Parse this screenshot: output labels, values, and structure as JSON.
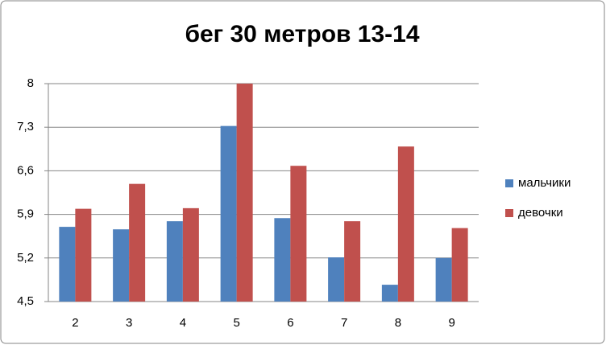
{
  "chart_data": {
    "type": "bar",
    "title": "бег 30 метров 13-14",
    "categories": [
      "2",
      "3",
      "4",
      "5",
      "6",
      "7",
      "8",
      "9"
    ],
    "series": [
      {
        "name": "мальчики",
        "color": "#4f81bd",
        "values": [
          5.7,
          5.66,
          5.79,
          7.32,
          5.84,
          5.21,
          4.77,
          5.2
        ]
      },
      {
        "name": "девочки",
        "color": "#c0504d",
        "values": [
          5.99,
          6.39,
          6.0,
          8.0,
          6.68,
          5.79,
          6.99,
          5.68
        ]
      }
    ],
    "ylim": [
      4.5,
      8
    ],
    "yticks": [
      {
        "value": 4.5,
        "label": "4,5"
      },
      {
        "value": 5.2,
        "label": "5,2"
      },
      {
        "value": 5.9,
        "label": "5,9"
      },
      {
        "value": 6.6,
        "label": "6,6"
      },
      {
        "value": 7.3,
        "label": "7,3"
      },
      8
    ],
    "grid": true,
    "legend": "right"
  }
}
